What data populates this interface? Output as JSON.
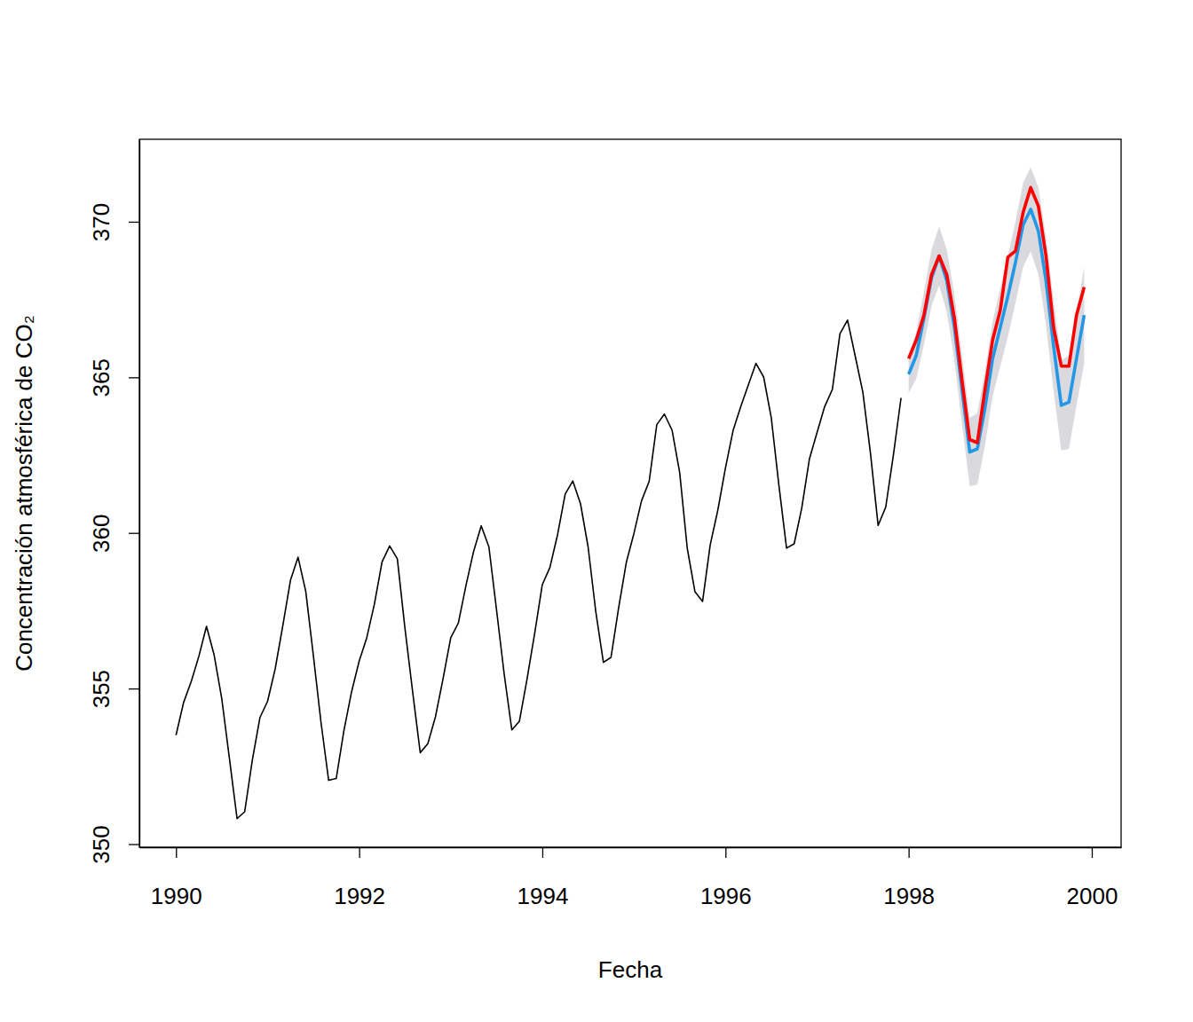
{
  "chart_data": {
    "type": "line",
    "x_label": "Fecha",
    "y_label": "Concentración atmosférica de CO₂",
    "xlim": [
      1989.6,
      2000.32
    ],
    "ylim": [
      349.9,
      372.65
    ],
    "xticks": [
      1990,
      1992,
      1994,
      1996,
      1998,
      2000
    ],
    "yticks": [
      350,
      355,
      360,
      365,
      370
    ],
    "series": [
      {
        "type": "area",
        "color": "#d9d9de",
        "x": [
          1998,
          1998.083,
          1998.167,
          1998.25,
          1998.333,
          1998.417,
          1998.5,
          1998.583,
          1998.667,
          1998.75,
          1998.833,
          1998.917,
          1999,
          1999.083,
          1999.167,
          1999.25,
          1999.333,
          1999.417,
          1999.5,
          1999.583,
          1999.667,
          1999.75,
          1999.833,
          1999.917
        ],
        "lower": [
          364.5,
          364.95,
          366.05,
          367.3,
          367.95,
          367.1,
          365.55,
          363.5,
          361.5,
          361.55,
          362.8,
          364.4,
          365.35,
          366.3,
          367.4,
          368.55,
          369.05,
          368.3,
          366.7,
          364.55,
          362.65,
          362.7,
          364.1,
          365.45
        ],
        "upper": [
          365.7,
          366.45,
          367.75,
          369.1,
          369.85,
          369.1,
          367.65,
          365.7,
          363.7,
          363.85,
          365.2,
          366.8,
          367.85,
          368.9,
          370.0,
          371.25,
          371.75,
          371.1,
          369.5,
          367.45,
          365.55,
          365.7,
          367.1,
          368.55
        ]
      },
      {
        "type": "line",
        "color": "#000000",
        "x": [
          1990,
          1990.083,
          1990.167,
          1990.25,
          1990.333,
          1990.417,
          1990.5,
          1990.583,
          1990.667,
          1990.75,
          1990.833,
          1990.917,
          1991,
          1991.083,
          1991.167,
          1991.25,
          1991.333,
          1991.417,
          1991.5,
          1991.583,
          1991.667,
          1991.75,
          1991.833,
          1991.917,
          1992,
          1992.083,
          1992.167,
          1992.25,
          1992.333,
          1992.417,
          1992.5,
          1992.583,
          1992.667,
          1992.75,
          1992.833,
          1992.917,
          1993,
          1993.083,
          1993.167,
          1993.25,
          1993.333,
          1993.417,
          1993.5,
          1993.583,
          1993.667,
          1993.75,
          1993.833,
          1993.917,
          1994,
          1994.083,
          1994.167,
          1994.25,
          1994.333,
          1994.417,
          1994.5,
          1994.583,
          1994.667,
          1994.75,
          1994.833,
          1994.917,
          1995,
          1995.083,
          1995.167,
          1995.25,
          1995.333,
          1995.417,
          1995.5,
          1995.583,
          1995.667,
          1995.75,
          1995.833,
          1995.917,
          1996,
          1996.083,
          1996.167,
          1996.25,
          1996.333,
          1996.417,
          1996.5,
          1996.583,
          1996.667,
          1996.75,
          1996.833,
          1996.917,
          1997,
          1997.083,
          1997.167,
          1997.25,
          1997.333,
          1997.417,
          1997.5,
          1997.583,
          1997.667,
          1997.75,
          1997.833,
          1997.917
        ],
        "values": [
          353.5,
          354.55,
          355.23,
          356.04,
          357.0,
          356.07,
          354.67,
          352.76,
          350.82,
          351.04,
          352.69,
          354.07,
          354.59,
          355.63,
          357.03,
          358.48,
          359.22,
          358.12,
          356.06,
          353.92,
          352.05,
          352.11,
          353.64,
          354.89,
          355.88,
          356.63,
          357.72,
          359.07,
          359.58,
          359.17,
          356.94,
          354.92,
          352.94,
          353.23,
          354.09,
          355.33,
          356.63,
          357.1,
          358.32,
          359.41,
          360.23,
          359.55,
          357.53,
          355.48,
          353.67,
          353.95,
          355.3,
          356.78,
          358.34,
          358.89,
          359.95,
          361.25,
          361.67,
          360.94,
          359.55,
          357.49,
          355.84,
          356.0,
          357.59,
          359.05,
          359.98,
          361.03,
          361.66,
          363.48,
          363.82,
          363.3,
          361.94,
          359.5,
          358.11,
          357.8,
          359.61,
          360.74,
          362.09,
          363.29,
          364.06,
          364.76,
          365.45,
          365.01,
          363.7,
          361.54,
          359.51,
          359.65,
          360.8,
          362.38,
          363.23,
          364.06,
          364.61,
          366.4,
          366.84,
          365.68,
          364.52,
          362.57,
          360.24,
          360.83,
          362.49,
          364.34
        ]
      },
      {
        "type": "line",
        "color": "#2297e6",
        "x": [
          1998,
          1998.083,
          1998.167,
          1998.25,
          1998.333,
          1998.417,
          1998.5,
          1998.583,
          1998.667,
          1998.75,
          1998.833,
          1998.917,
          1999,
          1999.083,
          1999.167,
          1999.25,
          1999.333,
          1999.417,
          1999.5,
          1999.583,
          1999.667,
          1999.75,
          1999.833,
          1999.917
        ],
        "values": [
          365.1,
          365.7,
          366.9,
          368.2,
          368.9,
          368.1,
          366.6,
          364.6,
          362.6,
          362.7,
          364.0,
          365.6,
          366.6,
          367.6,
          368.7,
          369.9,
          370.4,
          369.7,
          368.1,
          366.0,
          364.1,
          364.2,
          365.6,
          367.0
        ]
      },
      {
        "type": "line",
        "color": "#ff0000",
        "x": [
          1998,
          1998.083,
          1998.167,
          1998.25,
          1998.333,
          1998.417,
          1998.5,
          1998.583,
          1998.667,
          1998.75,
          1998.833,
          1998.917,
          1999,
          1999.083,
          1999.167,
          1999.25,
          1999.333,
          1999.417,
          1999.5,
          1999.583,
          1999.667,
          1999.75,
          1999.833,
          1999.917
        ],
        "values": [
          365.6,
          366.2,
          367.0,
          368.3,
          368.9,
          368.3,
          366.9,
          364.9,
          363.0,
          362.9,
          364.6,
          366.2,
          367.15,
          368.86,
          369.06,
          370.3,
          371.1,
          370.5,
          368.9,
          366.6,
          365.36,
          365.36,
          367.0,
          367.9
        ]
      }
    ]
  }
}
